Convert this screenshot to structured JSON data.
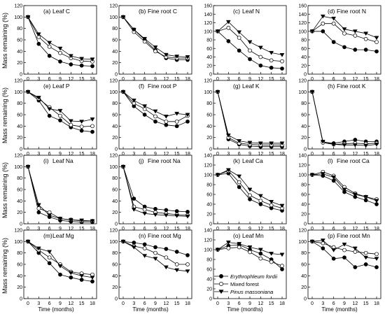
{
  "figure": {
    "ylabel": "Mass remaining (%)",
    "xlabel": "Time (months)"
  },
  "legend": {
    "entries": [
      {
        "label": "Erythrophleum fordii",
        "marker": "filled-circle",
        "italic": true
      },
      {
        "label": "Mixed forest",
        "marker": "open-circle",
        "italic": false
      },
      {
        "label": "Pinus massoniana",
        "marker": "filled-triangle-down",
        "italic": true
      }
    ]
  },
  "chart_data": [
    {
      "type": "line",
      "label": "(a)",
      "title": "Leaf  C",
      "ylim": [
        0,
        120
      ],
      "yticks": [
        0,
        20,
        40,
        60,
        80,
        100,
        120
      ],
      "x": [
        0,
        3,
        6,
        9,
        12,
        15,
        18
      ],
      "series": [
        {
          "name": "Erythrophleum fordii",
          "values": [
            100,
            53,
            32,
            22,
            17,
            15,
            14
          ]
        },
        {
          "name": "Mixed forest",
          "values": [
            100,
            65,
            48,
            37,
            28,
            23,
            22
          ]
        },
        {
          "name": "Pinus massoniana",
          "values": [
            100,
            70,
            55,
            45,
            32,
            27,
            26
          ]
        }
      ]
    },
    {
      "type": "line",
      "label": "(b)",
      "title": "Fine root  C",
      "ylim": [
        0,
        120
      ],
      "yticks": [
        0,
        20,
        40,
        60,
        80,
        100,
        120
      ],
      "x": [
        0,
        3,
        6,
        9,
        12,
        15,
        18
      ],
      "series": [
        {
          "name": "Erythrophleum fordii",
          "values": [
            100,
            78,
            60,
            42,
            28,
            25,
            25
          ]
        },
        {
          "name": "Mixed forest",
          "values": [
            100,
            74,
            57,
            40,
            30,
            28,
            28
          ]
        },
        {
          "name": "Pinus massoniana",
          "values": [
            100,
            78,
            62,
            47,
            34,
            31,
            30
          ]
        }
      ]
    },
    {
      "type": "line",
      "label": "(c)",
      "title": "Leaf  N",
      "ylim": [
        0,
        160
      ],
      "yticks": [
        0,
        20,
        40,
        60,
        80,
        100,
        120,
        140,
        160
      ],
      "x": [
        0,
        3,
        6,
        9,
        12,
        15,
        18
      ],
      "series": [
        {
          "name": "Erythrophleum fordii",
          "values": [
            100,
            77,
            55,
            35,
            20,
            15,
            13
          ]
        },
        {
          "name": "Mixed forest",
          "values": [
            100,
            108,
            85,
            55,
            40,
            32,
            30
          ]
        },
        {
          "name": "Pinus massoniana",
          "values": [
            100,
            122,
            98,
            75,
            62,
            50,
            45
          ]
        }
      ]
    },
    {
      "type": "line",
      "label": "(d)",
      "title": "Fine root  N",
      "ylim": [
        0,
        160
      ],
      "yticks": [
        0,
        20,
        40,
        60,
        80,
        100,
        120,
        140,
        160
      ],
      "x": [
        0,
        3,
        6,
        9,
        12,
        15,
        18
      ],
      "series": [
        {
          "name": "Erythrophleum fordii",
          "values": [
            100,
            100,
            75,
            63,
            57,
            57,
            53
          ]
        },
        {
          "name": "Mixed forest",
          "values": [
            100,
            118,
            118,
            95,
            90,
            82,
            75
          ]
        },
        {
          "name": "Pinus massoniana",
          "values": [
            100,
            135,
            130,
            105,
            100,
            95,
            85
          ]
        }
      ]
    },
    {
      "type": "line",
      "label": "(e)",
      "title": "Leaf  P",
      "ylim": [
        0,
        120
      ],
      "yticks": [
        0,
        20,
        40,
        60,
        80,
        100,
        120
      ],
      "x": [
        0,
        3,
        6,
        9,
        12,
        15,
        18
      ],
      "series": [
        {
          "name": "Erythrophleum fordii",
          "values": [
            100,
            85,
            58,
            50,
            38,
            32,
            30
          ]
        },
        {
          "name": "Mixed forest",
          "values": [
            100,
            88,
            73,
            58,
            42,
            39,
            40
          ]
        },
        {
          "name": "Pinus massoniana",
          "values": [
            100,
            90,
            70,
            67,
            49,
            48,
            52
          ]
        }
      ]
    },
    {
      "type": "line",
      "label": "(f)",
      "title": "Fine root  P",
      "ylim": [
        0,
        120
      ],
      "yticks": [
        0,
        20,
        40,
        60,
        80,
        100,
        120
      ],
      "x": [
        0,
        3,
        6,
        9,
        12,
        15,
        18
      ],
      "series": [
        {
          "name": "Erythrophleum fordii",
          "values": [
            100,
            75,
            60,
            48,
            42,
            40,
            48
          ]
        },
        {
          "name": "Mixed forest",
          "values": [
            100,
            80,
            70,
            57,
            48,
            48,
            58
          ]
        },
        {
          "name": "Pinus massoniana",
          "values": [
            100,
            85,
            75,
            66,
            57,
            62,
            60
          ]
        }
      ]
    },
    {
      "type": "line",
      "label": "(g)",
      "title": "Leaf  K",
      "ylim": [
        0,
        120
      ],
      "yticks": [
        0,
        20,
        40,
        60,
        80,
        100,
        120
      ],
      "x": [
        0,
        3,
        6,
        9,
        12,
        15,
        18
      ],
      "series": [
        {
          "name": "Erythrophleum fordii",
          "values": [
            100,
            17,
            8,
            5,
            4,
            4,
            4
          ]
        },
        {
          "name": "Mixed forest",
          "values": [
            100,
            20,
            10,
            8,
            7,
            7,
            7
          ]
        },
        {
          "name": "Pinus massoniana",
          "values": [
            100,
            24,
            14,
            11,
            10,
            10,
            10
          ]
        }
      ]
    },
    {
      "type": "line",
      "label": "(h)",
      "title": "Fine root  K",
      "ylim": [
        0,
        120
      ],
      "yticks": [
        0,
        20,
        40,
        60,
        80,
        100,
        120
      ],
      "x": [
        0,
        3,
        6,
        9,
        12,
        15,
        18
      ],
      "series": [
        {
          "name": "Erythrophleum fordii",
          "values": [
            100,
            12,
            10,
            13,
            16,
            13,
            13
          ]
        },
        {
          "name": "Mixed forest",
          "values": [
            100,
            11,
            8,
            9,
            10,
            9,
            10
          ]
        },
        {
          "name": "Pinus massoniana",
          "values": [
            100,
            13,
            8,
            7,
            7,
            6,
            8
          ]
        }
      ]
    },
    {
      "type": "line",
      "label": "(i)",
      "title": "Leaf  Na",
      "ylim": [
        0,
        120
      ],
      "yticks": [
        0,
        20,
        40,
        60,
        80,
        100,
        120
      ],
      "x": [
        0,
        3,
        6,
        9,
        12,
        15,
        18
      ],
      "series": [
        {
          "name": "Erythrophleum fordii",
          "values": [
            100,
            20,
            12,
            6,
            4,
            3,
            3
          ]
        },
        {
          "name": "Mixed forest",
          "values": [
            100,
            27,
            20,
            9,
            7,
            5,
            5
          ]
        },
        {
          "name": "Pinus massoniana",
          "values": [
            100,
            33,
            15,
            9,
            7,
            6,
            5
          ]
        }
      ]
    },
    {
      "type": "line",
      "label": "(j)",
      "title": "Fine root  Na",
      "ylim": [
        0,
        120
      ],
      "yticks": [
        0,
        20,
        40,
        60,
        80,
        100,
        120
      ],
      "x": [
        0,
        3,
        6,
        9,
        12,
        15,
        18
      ],
      "series": [
        {
          "name": "Erythrophleum fordii",
          "values": [
            100,
            44,
            30,
            26,
            24,
            22,
            21
          ]
        },
        {
          "name": "Mixed forest",
          "values": [
            100,
            30,
            25,
            20,
            18,
            16,
            15
          ]
        },
        {
          "name": "Pinus massoniana",
          "values": [
            100,
            25,
            18,
            16,
            15,
            14,
            13
          ]
        }
      ]
    },
    {
      "type": "line",
      "label": "(k)",
      "title": "Leaf  Ca",
      "ylim": [
        0,
        140
      ],
      "yticks": [
        0,
        20,
        40,
        60,
        80,
        100,
        120,
        140
      ],
      "x": [
        0,
        3,
        6,
        9,
        12,
        15,
        18
      ],
      "series": [
        {
          "name": "Erythrophleum fordii",
          "values": [
            100,
            103,
            75,
            50,
            40,
            32,
            27
          ]
        },
        {
          "name": "Mixed forest",
          "values": [
            100,
            108,
            85,
            58,
            47,
            38,
            32
          ]
        },
        {
          "name": "Pinus massoniana",
          "values": [
            100,
            110,
            97,
            70,
            57,
            45,
            37
          ]
        }
      ]
    },
    {
      "type": "line",
      "label": "(l)",
      "title": "Fine root  Ca",
      "ylim": [
        0,
        140
      ],
      "yticks": [
        0,
        20,
        40,
        60,
        80,
        100,
        120,
        140
      ],
      "x": [
        0,
        3,
        6,
        9,
        12,
        15,
        18
      ],
      "series": [
        {
          "name": "Erythrophleum fordii",
          "values": [
            100,
            98,
            88,
            65,
            55,
            48,
            40
          ]
        },
        {
          "name": "Mixed forest",
          "values": [
            100,
            106,
            98,
            75,
            62,
            55,
            50
          ]
        },
        {
          "name": "Pinus massoniana",
          "values": [
            100,
            102,
            95,
            70,
            60,
            55,
            47
          ]
        }
      ]
    },
    {
      "type": "line",
      "label": "(m)",
      "title": "Leaf  Mg",
      "ylim": [
        0,
        120
      ],
      "yticks": [
        0,
        20,
        40,
        60,
        80,
        100,
        120
      ],
      "x": [
        0,
        3,
        6,
        9,
        12,
        15,
        18
      ],
      "series": [
        {
          "name": "Erythrophleum fordii",
          "values": [
            100,
            80,
            62,
            42,
            37,
            33,
            30
          ]
        },
        {
          "name": "Mixed forest",
          "values": [
            100,
            85,
            72,
            60,
            47,
            44,
            42
          ]
        },
        {
          "name": "Pinus massoniana",
          "values": [
            100,
            88,
            82,
            57,
            45,
            40,
            37
          ]
        }
      ]
    },
    {
      "type": "line",
      "label": "(n)",
      "title": "Fine root  Mg",
      "ylim": [
        0,
        120
      ],
      "yticks": [
        0,
        20,
        40,
        60,
        80,
        100,
        120
      ],
      "x": [
        0,
        3,
        6,
        9,
        12,
        15,
        18
      ],
      "series": [
        {
          "name": "Erythrophleum fordii",
          "values": [
            100,
            98,
            95,
            90,
            87,
            82,
            76
          ]
        },
        {
          "name": "Mixed forest",
          "values": [
            100,
            92,
            88,
            80,
            72,
            60,
            60
          ]
        },
        {
          "name": "Pinus massoniana",
          "values": [
            100,
            90,
            75,
            70,
            55,
            50,
            48
          ]
        }
      ]
    },
    {
      "type": "line",
      "label": "(o)",
      "title": "Leaf  Mn",
      "ylim": [
        0,
        140
      ],
      "yticks": [
        0,
        20,
        40,
        60,
        80,
        100,
        120,
        140
      ],
      "x": [
        0,
        3,
        6,
        9,
        12,
        15,
        18
      ],
      "series": [
        {
          "name": "Erythrophleum fordii",
          "values": [
            100,
            108,
            110,
            100,
            92,
            80,
            60
          ]
        },
        {
          "name": "Mixed forest",
          "values": [
            100,
            103,
            105,
            95,
            82,
            75,
            67
          ]
        },
        {
          "name": "Pinus massoniana",
          "values": [
            100,
            115,
            112,
            105,
            100,
            92,
            90
          ]
        }
      ]
    },
    {
      "type": "line",
      "label": "(p)",
      "title": "Fine root  Mn",
      "ylim": [
        0,
        120
      ],
      "yticks": [
        0,
        20,
        40,
        60,
        80,
        100,
        120
      ],
      "x": [
        0,
        3,
        6,
        9,
        12,
        15,
        18
      ],
      "series": [
        {
          "name": "Erythrophleum fordii",
          "values": [
            100,
            88,
            70,
            72,
            55,
            60,
            55
          ]
        },
        {
          "name": "Mixed forest",
          "values": [
            100,
            97,
            90,
            85,
            82,
            80,
            78
          ]
        },
        {
          "name": "Pinus massoniana",
          "values": [
            100,
            102,
            85,
            95,
            88,
            72,
            70
          ]
        }
      ]
    }
  ]
}
